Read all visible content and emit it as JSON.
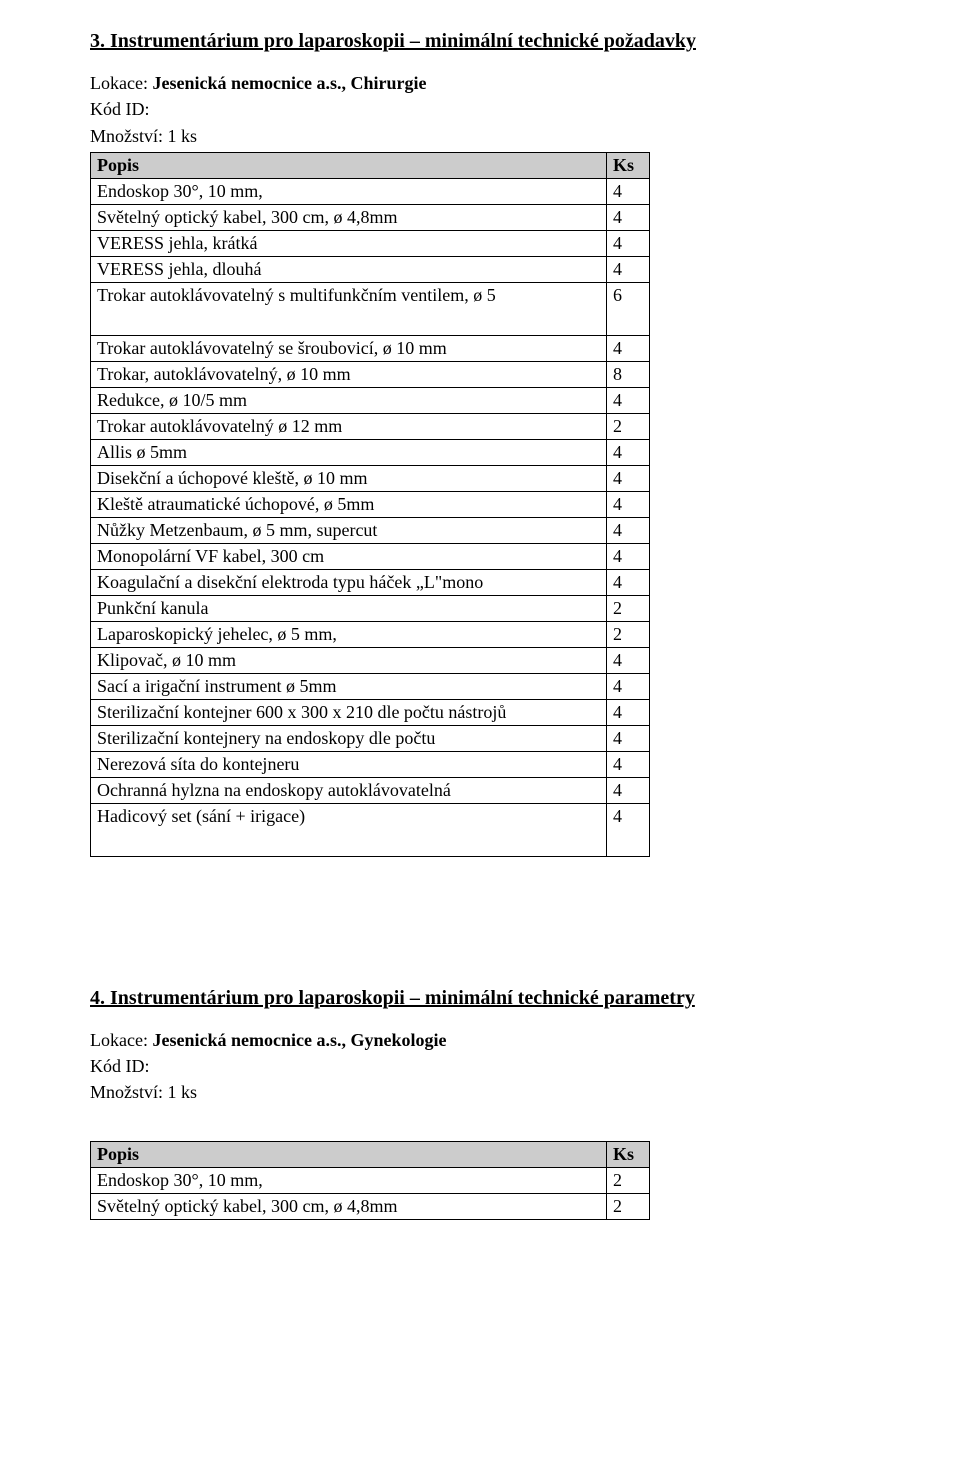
{
  "section3": {
    "title": "3.  Instrumentárium pro laparoskopii – minimální technické požadavky",
    "location_label": "Lokace:",
    "location_value": "Jesenická nemocnice a.s., Chirurgie",
    "kod_id_label": "Kód ID:",
    "mnozstvi_label": "Množství: 1 ks",
    "table": {
      "header_popis": "Popis",
      "header_ks": "Ks",
      "rows_a": [
        {
          "p": "Endoskop 30°, 10 mm,",
          "k": "4"
        },
        {
          "p": "Světelný optický kabel, 300 cm, ø 4,8mm",
          "k": "4"
        },
        {
          "p": "VERESS jehla, krátká",
          "k": "4"
        },
        {
          "p": "VERESS jehla, dlouhá",
          "k": "4"
        },
        {
          "p": "Trokar autoklávovatelný s multifunkčním ventilem, ø 5",
          "k": "6"
        }
      ],
      "rows_b": [
        {
          "p": "Trokar autoklávovatelný se šroubovicí, ø 10 mm",
          "k": "4"
        },
        {
          "p": "Trokar, autoklávovatelný, ø  10 mm",
          "k": "8"
        },
        {
          "p": "Redukce, ø 10/5 mm",
          "k": "4"
        },
        {
          "p": "Trokar autoklávovatelný ø 12 mm",
          "k": "2"
        },
        {
          "p": "Allis ø 5mm",
          "k": "4"
        },
        {
          "p": "Disekční a úchopové kleště, ø 10 mm",
          "k": "4"
        },
        {
          "p": "Kleště atraumatické úchopové, ø  5mm",
          "k": "4"
        },
        {
          "p": "Nůžky Metzenbaum, ø 5 mm, supercut",
          "k": "4"
        },
        {
          "p": "Monopolární VF kabel, 300 cm",
          "k": "4"
        },
        {
          "p": "Koagulační a disekční elektroda typu háček „L\"mono",
          "k": "4"
        },
        {
          "p": "Punkční kanula",
          "k": "2"
        },
        {
          "p": "Laparoskopický jehelec, ø 5 mm,",
          "k": "2"
        },
        {
          "p": "Klipovač, ø  10 mm",
          "k": "4"
        },
        {
          "p": "Sací a irigační instrument ø 5mm",
          "k": "4"
        },
        {
          "p": "Sterilizační kontejner 600 x 300 x 210 dle počtu nástrojů",
          "k": "4"
        },
        {
          "p": "Sterilizační kontejnery na endoskopy dle počtu",
          "k": "4"
        },
        {
          "p": "Nerezová síta do kontejneru",
          "k": "4"
        },
        {
          "p": "Ochranná hylzna na endoskopy autoklávovatelná",
          "k": "4"
        },
        {
          "p": "Hadicový set (sání + irigace)",
          "k": "4"
        }
      ]
    }
  },
  "section4": {
    "title": "4.  Instrumentárium pro laparoskopii – minimální technické parametry",
    "location_label": "Lokace:",
    "location_value": "Jesenická nemocnice a.s., Gynekologie",
    "kod_id_label": "Kód ID:",
    "mnozstvi_label": "Množství: 1 ks",
    "table": {
      "header_popis": "Popis",
      "header_ks": "Ks",
      "rows": [
        {
          "p": "Endoskop 30°, 10 mm,",
          "k": "2"
        },
        {
          "p": "Světelný optický kabel, 300 cm, ø 4,8mm",
          "k": "2"
        }
      ]
    }
  }
}
